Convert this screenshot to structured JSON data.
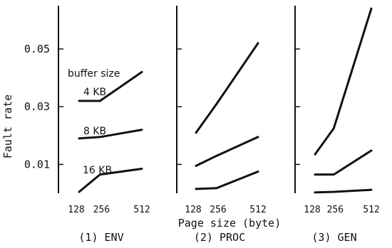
{
  "chart_data": {
    "type": "line",
    "ylabel": "Fault rate",
    "xlabel": "Page size (byte)",
    "ylim": [
      0.0,
      0.065
    ],
    "yticks": [
      {
        "value": 0.01,
        "label": "0.01"
      },
      {
        "value": 0.03,
        "label": "0.03"
      },
      {
        "value": 0.05,
        "label": "0.05"
      }
    ],
    "x_positions": [
      128,
      256,
      512
    ],
    "x_tick_labels": [
      "128",
      "256",
      "512"
    ],
    "annotations": {
      "header": "buffer size",
      "labels": [
        "4 KB",
        "8 KB",
        "16 KB"
      ]
    },
    "panels": [
      {
        "title": "(1) ENV",
        "series": [
          {
            "values": [
              0.032,
              0.032,
              0.042
            ]
          },
          {
            "values": [
              0.019,
              0.0195,
              0.022
            ]
          },
          {
            "values": [
              0.0005,
              0.0065,
              0.0085
            ]
          }
        ]
      },
      {
        "title": "(2) PROC",
        "series": [
          {
            "values": [
              0.021,
              0.031,
              0.052
            ]
          },
          {
            "values": [
              0.0095,
              0.013,
              0.0195
            ]
          },
          {
            "values": [
              0.0015,
              0.0018,
              0.0075
            ]
          }
        ]
      },
      {
        "title": "(3) GEN",
        "series": [
          {
            "values": [
              0.0135,
              0.0225,
              0.064
            ]
          },
          {
            "values": [
              0.0065,
              0.0065,
              0.0148
            ]
          },
          {
            "values": [
              0.0003,
              0.0005,
              0.0012
            ]
          }
        ]
      }
    ]
  }
}
